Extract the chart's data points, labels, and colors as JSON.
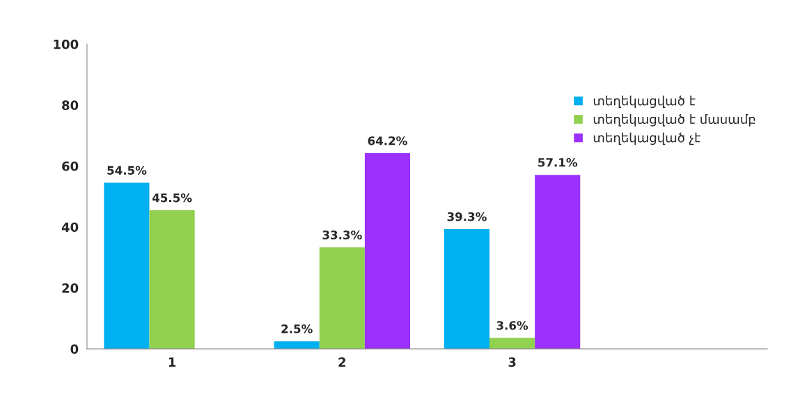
{
  "chart_data": {
    "type": "bar",
    "categories": [
      "1",
      "2",
      "3",
      null
    ],
    "series": [
      {
        "name": "տեղեկացված է",
        "color": "#00b0f0",
        "values": [
          54.5,
          2.5,
          39.3,
          null
        ],
        "value_labels": [
          "54.5%",
          "2.5%",
          "39.3%",
          null
        ]
      },
      {
        "name": "տեղեկացված է մասամբ",
        "color": "#92d050",
        "values": [
          45.5,
          33.3,
          3.6,
          null
        ],
        "value_labels": [
          "45.5%",
          "33.3%",
          "3.6%",
          null
        ]
      },
      {
        "name": "տեղեկացված չէ",
        "color": "#9b30ff",
        "values": [
          null,
          64.2,
          57.1,
          null
        ],
        "value_labels": [
          null,
          "64.2%",
          "57.1%",
          null
        ]
      }
    ],
    "ylim": [
      0,
      100
    ],
    "yticks": [
      0,
      20,
      40,
      60,
      80,
      100
    ],
    "grid": false,
    "legend": "right"
  }
}
